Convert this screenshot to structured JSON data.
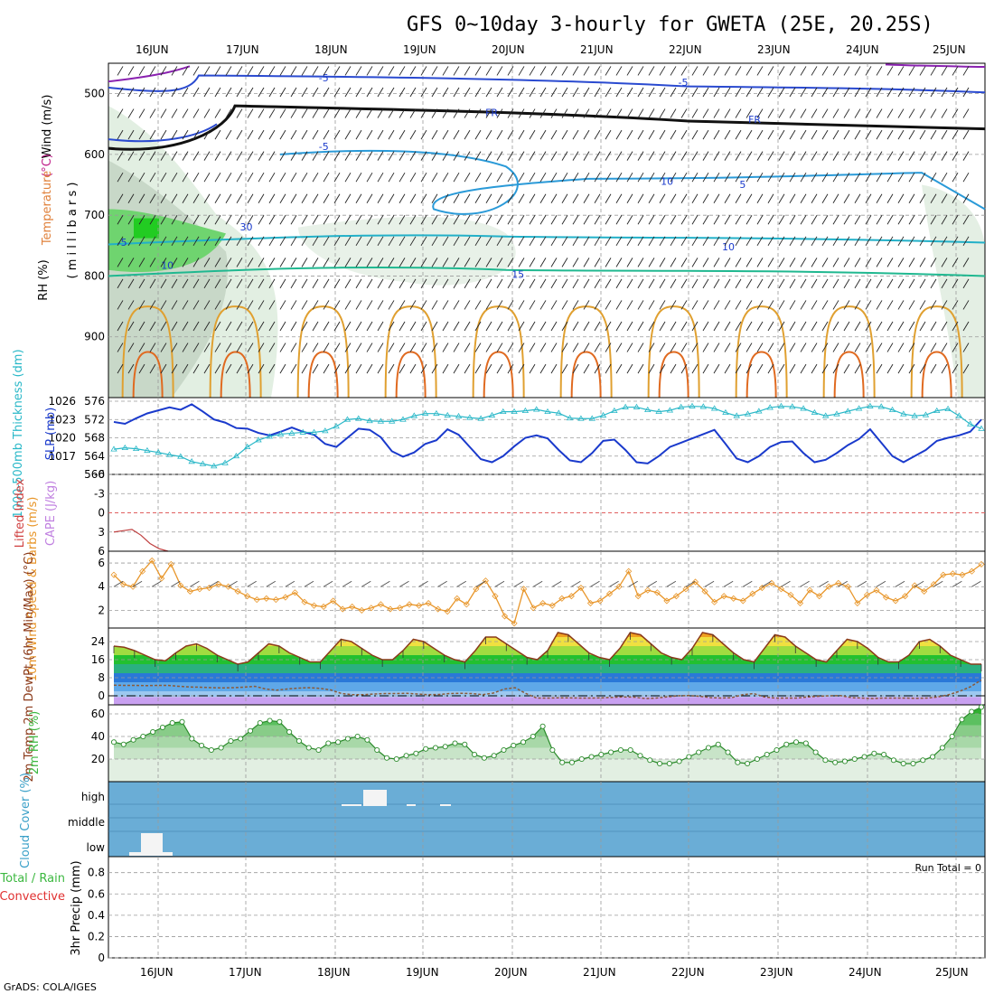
{
  "title": "GFS 0~10day 3-hourly for GWETA (25E, 20.25S)",
  "credit": "GrADS: COLA/IGES",
  "dates": [
    "16JUN",
    "17JUN",
    "18JUN",
    "19JUN",
    "20JUN",
    "21JUN",
    "22JUN",
    "23JUN",
    "24JUN",
    "25JUN"
  ],
  "colors": {
    "grid": "#9a9a9a",
    "slp": "#1a3acc",
    "thickness": "#2ab8c8",
    "wind10m": "#e8962a",
    "cloud_bg": "#6aadd6",
    "rh_fill": "#3cb840",
    "temp_line": "#8b3a1a",
    "dewpt": "#8b5a3a"
  },
  "chart_data": [
    {
      "panel": "upper-air",
      "type": "contour",
      "ylabel_parts": [
        "RH (%)",
        "Temperature",
        "(°C)",
        "Wind (m/s)"
      ],
      "ylabel_units": "( m i l l i b a r s )",
      "y_ticks": [
        500,
        600,
        700,
        800,
        900
      ],
      "ylim": [
        1000,
        450
      ],
      "contour_labels": [
        {
          "text": "-5",
          "day": 2.4,
          "p": 480
        },
        {
          "text": "-5",
          "day": 6.5,
          "p": 487
        },
        {
          "text": "FR",
          "day": 4.3,
          "p": 537
        },
        {
          "text": "FR",
          "day": 7.3,
          "p": 548
        },
        {
          "text": "-5",
          "day": 2.4,
          "p": 593
        },
        {
          "text": "5",
          "day": 7.2,
          "p": 655
        },
        {
          "text": "10",
          "day": 6.3,
          "p": 650
        },
        {
          "text": "-5",
          "day": 0.1,
          "p": 750
        },
        {
          "text": "10",
          "day": 0.6,
          "p": 788
        },
        {
          "text": "10",
          "day": 7.0,
          "p": 758
        },
        {
          "text": "15",
          "day": 4.6,
          "p": 803
        },
        {
          "text": "30",
          "day": 1.5,
          "p": 725
        }
      ]
    },
    {
      "panel": "slp-thickness",
      "type": "line",
      "ylabel_left": "1000-500mb Thickness (dm)",
      "ylabel_right": "SLP (mb)",
      "thickness_ticks": [
        560,
        564,
        568,
        572,
        576
      ],
      "slp_ticks": [
        1017,
        1020,
        1023,
        1026
      ],
      "series": [
        {
          "name": "SLP",
          "axis": "slp",
          "values": [
            1022.6,
            1022.3,
            1023.2,
            1024.0,
            1024.5,
            1025.0,
            1024.6,
            1025.5,
            1024.3,
            1023.0,
            1022.5,
            1021.6,
            1021.5,
            1020.8,
            1020.4,
            1021.0,
            1021.7,
            1021.0,
            1020.5,
            1019.0,
            1018.5,
            1020.0,
            1021.5,
            1021.3,
            1020.1,
            1017.8,
            1016.9,
            1017.6,
            1019.0,
            1019.6,
            1021.4,
            1020.5,
            1018.5,
            1016.5,
            1016.0,
            1017.0,
            1018.6,
            1020.0,
            1020.4,
            1019.9,
            1018.0,
            1016.3,
            1016.0,
            1017.5,
            1019.5,
            1019.7,
            1018.0,
            1016.0,
            1015.8,
            1017.0,
            1018.5,
            1019.2,
            1019.9,
            1020.6,
            1021.3,
            1019.0,
            1016.6,
            1016.0,
            1017.0,
            1018.5,
            1019.3,
            1019.4,
            1017.5,
            1016.0,
            1016.4,
            1017.5,
            1018.8,
            1019.8,
            1021.4,
            1019.2,
            1017.0,
            1016.0,
            1017.0,
            1018.0,
            1019.5,
            1020.0,
            1020.4,
            1021.0,
            1023.0
          ]
        },
        {
          "name": "Thickness",
          "axis": "thickness",
          "values": [
            565.5,
            565.8,
            565.6,
            565.2,
            564.8,
            564.3,
            563.9,
            562.8,
            562.3,
            561.8,
            562.5,
            564.0,
            566.0,
            567.5,
            568.3,
            568.8,
            569.0,
            569.2,
            569.2,
            569.5,
            570.5,
            572.0,
            572.2,
            571.7,
            571.6,
            571.6,
            572.0,
            572.8,
            573.3,
            573.3,
            572.9,
            572.7,
            572.4,
            572.2,
            572.9,
            573.7,
            573.7,
            573.9,
            574.2,
            573.7,
            573.4,
            572.3,
            572.2,
            572.2,
            572.9,
            573.9,
            574.7,
            574.7,
            574.1,
            573.7,
            574.0,
            574.7,
            574.9,
            574.8,
            574.4,
            573.5,
            572.8,
            573.2,
            573.8,
            574.6,
            574.9,
            574.8,
            574.4,
            573.5,
            572.8,
            573.2,
            573.8,
            574.4,
            574.9,
            574.8,
            574.1,
            573.2,
            572.8,
            573.0,
            573.9,
            574.3,
            572.8,
            571.0,
            570.0
          ]
        }
      ]
    },
    {
      "panel": "stability",
      "type": "line",
      "ylabel_left": "Lifted Index",
      "ylabel_right": "CAPE (J/kg)",
      "li_ticks": [
        -6,
        -3,
        0,
        3,
        6
      ],
      "li_values": [
        3.0,
        2.8,
        2.6,
        3.5,
        4.8,
        5.6,
        6.0
      ]
    },
    {
      "panel": "wind10m",
      "type": "line",
      "ylabel": "10m Wind Speed & Barbs (m/s)",
      "y_ticks": [
        2,
        4,
        6
      ],
      "series": [
        {
          "name": "10m Wind Speed",
          "values": [
            5.0,
            4.2,
            4.0,
            5.3,
            6.2,
            4.7,
            5.9,
            4.1,
            3.6,
            3.8,
            3.9,
            4.2,
            4.0,
            3.6,
            3.2,
            2.9,
            3.0,
            2.9,
            3.1,
            3.5,
            2.7,
            2.4,
            2.3,
            2.8,
            2.1,
            2.3,
            2.0,
            2.2,
            2.5,
            2.1,
            2.2,
            2.5,
            2.4,
            2.6,
            2.1,
            1.9,
            3.0,
            2.5,
            3.8,
            4.5,
            3.2,
            1.5,
            0.9,
            3.8,
            2.2,
            2.6,
            2.4,
            3.0,
            3.2,
            3.9,
            2.6,
            2.8,
            3.4,
            4.0,
            5.3,
            3.2,
            3.7,
            3.5,
            2.8,
            3.2,
            3.8,
            4.4,
            3.6,
            2.7,
            3.2,
            3.0,
            2.8,
            3.4,
            3.9,
            4.3,
            3.8,
            3.3,
            2.6,
            3.7,
            3.2,
            4.0,
            4.3,
            4.0,
            2.6,
            3.3,
            3.7,
            3.1,
            2.8,
            3.2,
            4.1,
            3.6,
            4.2,
            5.0,
            5.1,
            5.0,
            5.3,
            5.9
          ]
        }
      ]
    },
    {
      "panel": "temperature",
      "type": "area",
      "ylabel": "2m Temp 2m DewPt (6hr Min/Max) (°C)",
      "y_ticks": [
        0,
        8,
        16,
        24
      ],
      "series": [
        {
          "name": "2m Temp",
          "values": [
            22,
            21.5,
            20,
            18,
            16,
            15.5,
            19,
            22,
            23,
            21,
            18,
            16,
            14,
            15,
            19,
            23,
            22,
            19,
            17,
            15,
            15,
            20,
            25,
            24,
            21,
            18,
            16,
            16,
            20,
            25,
            24,
            21,
            18,
            16,
            15,
            20,
            26,
            26,
            23,
            20,
            17,
            16,
            20,
            28,
            27,
            23,
            19,
            17,
            16,
            21,
            28,
            27,
            23,
            19,
            17,
            16,
            21,
            28,
            27,
            23,
            19,
            16,
            15,
            21,
            27,
            26,
            22,
            19,
            16,
            15,
            20,
            25,
            24,
            21,
            17,
            15,
            15,
            18,
            24,
            25,
            22,
            18,
            16,
            14,
            14
          ]
        },
        {
          "name": "2m DewPt",
          "values": [
            4.7,
            4.6,
            4.6,
            4.5,
            4.6,
            4.6,
            4.2,
            3.9,
            3.8,
            3.6,
            3.5,
            3.6,
            3.8,
            4.2,
            3.0,
            2.5,
            3.0,
            3.4,
            3.6,
            3.3,
            2.6,
            1.0,
            0.5,
            0.5,
            0.8,
            1.0,
            1.0,
            1.1,
            0.8,
            0.5,
            0.6,
            1.0,
            1.1,
            1.0,
            0.5,
            1.2,
            3.0,
            3.6,
            1.0,
            -1.0,
            -1.0,
            -0.9,
            -0.9,
            -1.0,
            -1.0,
            -0.9,
            -0.7,
            -0.5,
            -0.6,
            -1.2,
            -1.0,
            -0.5,
            0.0,
            0.1,
            -0.2,
            -0.8,
            -1.0,
            -0.8,
            0.5,
            1.0,
            -0.5,
            -1.0,
            -1.0,
            -1.0,
            -0.5,
            -0.2,
            0.0,
            0.1,
            -0.8,
            -1.0,
            -1.2,
            -1.0,
            -1.0,
            -1.0,
            -1.1,
            -1.0,
            -0.5,
            0.5,
            2.0,
            4.0,
            7.0
          ]
        }
      ]
    },
    {
      "panel": "rh2m",
      "type": "area",
      "ylabel": "2m RH (%)",
      "y_ticks": [
        20,
        40,
        60
      ],
      "series": [
        {
          "name": "2m RH",
          "values": [
            35,
            33,
            37,
            40,
            44,
            48,
            52,
            53,
            38,
            32,
            28,
            30,
            36,
            38,
            45,
            52,
            54,
            53,
            44,
            36,
            30,
            28,
            34,
            35,
            38,
            40,
            37,
            28,
            21,
            20,
            23,
            25,
            29,
            30,
            31,
            34,
            33,
            24,
            21,
            23,
            28,
            32,
            35,
            40,
            49,
            28,
            17,
            17,
            20,
            22,
            24,
            26,
            28,
            28,
            23,
            19,
            16,
            16,
            18,
            22,
            26,
            30,
            33,
            26,
            17,
            16,
            20,
            24,
            28,
            33,
            35,
            34,
            26,
            19,
            17,
            18,
            20,
            22,
            25,
            24,
            19,
            16,
            16,
            19,
            22,
            30,
            40,
            55,
            62,
            66
          ]
        }
      ]
    },
    {
      "panel": "cloud",
      "type": "bar",
      "ylabel": "Cloud Cover (%)",
      "categories": [
        "low",
        "middle",
        "high"
      ]
    },
    {
      "panel": "precip",
      "type": "bar",
      "ylabel_left": "Total / Rain",
      "ylabel_right": "Convective",
      "ylabel_axis": "3hr Precip (mm)",
      "y_ticks": [
        0,
        0.2,
        0.4,
        0.6,
        0.8
      ],
      "run_total": "Run Total = 0",
      "values": []
    }
  ]
}
